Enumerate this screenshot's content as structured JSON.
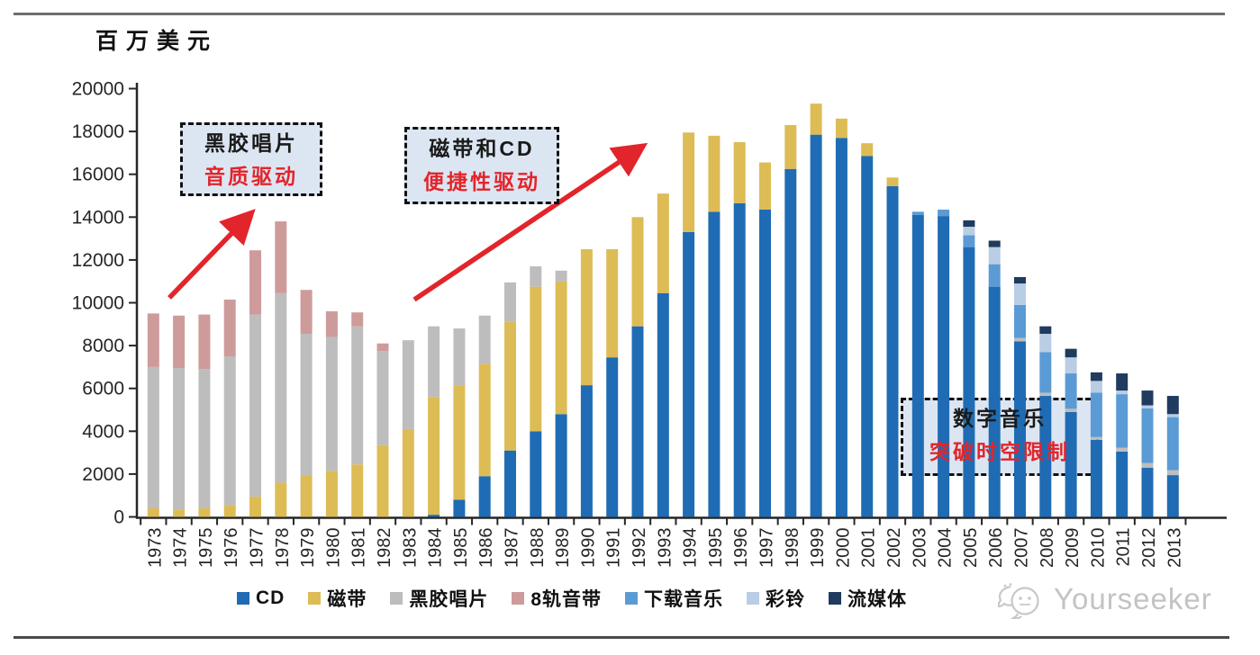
{
  "page": {
    "unit_label": "百万美元",
    "watermark": "Yourseeker"
  },
  "annotations": [
    {
      "line1": "黑胶唱片",
      "line2": "音质驱动"
    },
    {
      "line1": "磁带和CD",
      "line2": "便捷性驱动"
    },
    {
      "line1": "数字音乐",
      "line2": "突破时空限制"
    }
  ],
  "chart_data": {
    "type": "bar",
    "stacked": true,
    "unit": "百万美元",
    "ylabel": "百万美元",
    "xlabel": "",
    "ylim": [
      0,
      20000
    ],
    "ytick_step": 2000,
    "yticks": [
      0,
      2000,
      4000,
      6000,
      8000,
      10000,
      12000,
      14000,
      16000,
      18000,
      20000
    ],
    "grid": false,
    "legend_position": "bottom",
    "categories": [
      1973,
      1974,
      1975,
      1976,
      1977,
      1978,
      1979,
      1980,
      1981,
      1982,
      1983,
      1984,
      1985,
      1986,
      1987,
      1988,
      1989,
      1990,
      1991,
      1992,
      1993,
      1994,
      1995,
      1996,
      1997,
      1998,
      1999,
      2000,
      2001,
      2002,
      2003,
      2004,
      2005,
      2006,
      2007,
      2008,
      2009,
      2010,
      2011,
      2012,
      2013
    ],
    "series": [
      {
        "name": "CD",
        "color": "#1f6cb4",
        "values": [
          0,
          0,
          0,
          0,
          0,
          0,
          0,
          0,
          0,
          0,
          0,
          100,
          800,
          1900,
          3100,
          4000,
          4800,
          6150,
          7450,
          8900,
          10450,
          13300,
          14250,
          14650,
          14350,
          16250,
          17850,
          17700,
          16850,
          15450,
          14100,
          14050,
          12600,
          10750,
          8200,
          5650,
          4900,
          3600,
          3050,
          2300,
          1950
        ]
      },
      {
        "name": "磁带",
        "color": "#ddbc56",
        "values": [
          400,
          350,
          400,
          550,
          950,
          1600,
          1950,
          2150,
          2450,
          3350,
          4100,
          5500,
          5350,
          5250,
          6000,
          6750,
          6200,
          6350,
          5050,
          5100,
          4650,
          4650,
          3550,
          2850,
          2200,
          2050,
          1450,
          900,
          600,
          400,
          0,
          0,
          0,
          0,
          0,
          0,
          0,
          0,
          0,
          0,
          0
        ]
      },
      {
        "name": "黑胶唱片",
        "color": "#bdbdbd",
        "values": [
          6600,
          6600,
          6500,
          6950,
          8500,
          8850,
          6600,
          6250,
          6450,
          4400,
          4150,
          3300,
          2650,
          2250,
          1850,
          950,
          500,
          0,
          0,
          0,
          0,
          0,
          0,
          0,
          0,
          0,
          0,
          0,
          0,
          0,
          0,
          0,
          0,
          0,
          150,
          150,
          150,
          130,
          180,
          220,
          230
        ]
      },
      {
        "name": "8轨音带",
        "color": "#ce9b9b",
        "values": [
          2500,
          2450,
          2550,
          2650,
          3000,
          3350,
          2050,
          1200,
          650,
          350,
          0,
          0,
          0,
          0,
          0,
          0,
          0,
          0,
          0,
          0,
          0,
          0,
          0,
          0,
          0,
          0,
          0,
          0,
          0,
          0,
          0,
          0,
          0,
          0,
          0,
          0,
          0,
          0,
          0,
          0,
          0
        ]
      },
      {
        "name": "下载音乐",
        "color": "#5b9bd5",
        "values": [
          0,
          0,
          0,
          0,
          0,
          0,
          0,
          0,
          0,
          0,
          0,
          0,
          0,
          0,
          0,
          0,
          0,
          0,
          0,
          0,
          0,
          0,
          0,
          0,
          0,
          0,
          0,
          0,
          0,
          0,
          150,
          300,
          550,
          1050,
          1550,
          1900,
          1650,
          2070,
          2500,
          2550,
          2480
        ]
      },
      {
        "name": "彩铃",
        "color": "#b9cde4",
        "values": [
          0,
          0,
          0,
          0,
          0,
          0,
          0,
          0,
          0,
          0,
          0,
          0,
          0,
          0,
          0,
          0,
          0,
          0,
          0,
          0,
          0,
          0,
          0,
          0,
          0,
          0,
          0,
          0,
          0,
          0,
          0,
          0,
          400,
          800,
          1000,
          850,
          750,
          550,
          170,
          140,
          140
        ]
      },
      {
        "name": "流媒体",
        "color": "#1f3b5e",
        "values": [
          0,
          0,
          0,
          0,
          0,
          0,
          0,
          0,
          0,
          0,
          0,
          0,
          0,
          0,
          0,
          0,
          0,
          0,
          0,
          0,
          0,
          0,
          0,
          0,
          0,
          0,
          0,
          0,
          0,
          0,
          0,
          0,
          300,
          300,
          300,
          350,
          400,
          400,
          800,
          690,
          850
        ]
      }
    ],
    "annotations": [
      {
        "text": "黑胶唱片 音质驱动",
        "style": "dashed-box"
      },
      {
        "text": "磁带和CD 便捷性驱动",
        "style": "dashed-box"
      },
      {
        "text": "数字音乐 突破时空限制",
        "style": "dashed-box"
      }
    ],
    "arrow_color": "#e2252b"
  }
}
